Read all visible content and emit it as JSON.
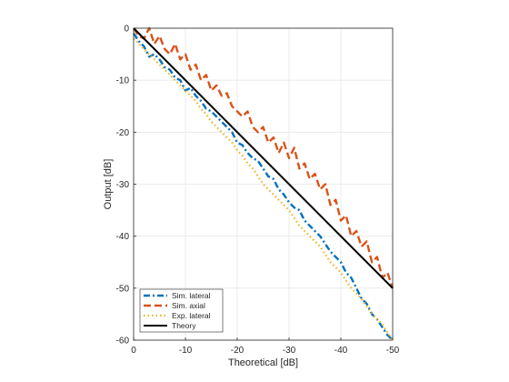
{
  "chart_data": {
    "type": "line",
    "xlabel": "Theoretical [dB]",
    "ylabel": "Output [dB]",
    "xlim": [
      0,
      -50
    ],
    "ylim": [
      -60,
      0
    ],
    "x_reversed": true,
    "grid": true,
    "legend_position": "bottom-left",
    "xticks": [
      0,
      -10,
      -20,
      -30,
      -40,
      -50
    ],
    "yticks": [
      0,
      -10,
      -20,
      -30,
      -40,
      -50,
      -60
    ],
    "xtick_labels": [
      "0",
      "-10",
      "-20",
      "-30",
      "-40",
      "-50"
    ],
    "ytick_labels": [
      "0",
      "-10",
      "-20",
      "-30",
      "-40",
      "-50",
      "-60"
    ],
    "series": [
      {
        "name": "Sim. lateral",
        "color": "#0072BD",
        "style": "dashdot",
        "x": [
          0,
          -1,
          -2,
          -3,
          -4,
          -5,
          -6,
          -7,
          -8,
          -9,
          -10,
          -11,
          -12,
          -13,
          -14,
          -15,
          -16,
          -17,
          -18,
          -19,
          -20,
          -21,
          -22,
          -23,
          -24,
          -25,
          -26,
          -27,
          -28,
          -29,
          -30,
          -31,
          -32,
          -33,
          -34,
          -35,
          -36,
          -37,
          -38,
          -39,
          -40,
          -41,
          -42,
          -43,
          -44,
          -45,
          -46,
          -47,
          -48,
          -49,
          -50
        ],
        "y": [
          -1,
          -2.5,
          -3.5,
          -5.5,
          -5,
          -6,
          -7.5,
          -8,
          -9.5,
          -10,
          -12,
          -11.5,
          -13,
          -14,
          -15.5,
          -16,
          -17,
          -18,
          -19,
          -20,
          -22,
          -22.5,
          -24,
          -25,
          -25.5,
          -27,
          -28.5,
          -29,
          -31,
          -32,
          -33.5,
          -34.5,
          -35,
          -37,
          -38,
          -39,
          -40,
          -41.5,
          -43,
          -44,
          -45,
          -47,
          -48,
          -50,
          -52,
          -53,
          -55,
          -56,
          -57.5,
          -59,
          -60
        ]
      },
      {
        "name": "Sim. axial",
        "color": "#D95319",
        "style": "dashed",
        "x": [
          0,
          -1,
          -2,
          -3,
          -4,
          -5,
          -6,
          -7,
          -8,
          -9,
          -10,
          -11,
          -12,
          -13,
          -14,
          -15,
          -16,
          -17,
          -18,
          -19,
          -20,
          -21,
          -22,
          -23,
          -24,
          -25,
          -26,
          -27,
          -28,
          -29,
          -30,
          -31,
          -32,
          -33,
          -34,
          -35,
          -36,
          -37,
          -38,
          -39,
          -40,
          -41,
          -42,
          -43,
          -44,
          -45,
          -46,
          -47,
          -48,
          -49,
          -50
        ],
        "y": [
          0,
          -1.5,
          -2,
          0,
          -3,
          -1.5,
          -4,
          -5,
          -3,
          -6,
          -5,
          -8,
          -7,
          -10,
          -9,
          -12,
          -11,
          -13,
          -12.5,
          -15,
          -16,
          -17,
          -16,
          -19,
          -20,
          -19,
          -22,
          -21,
          -24,
          -22,
          -25,
          -23,
          -27,
          -26,
          -29,
          -28,
          -31,
          -30,
          -34,
          -33,
          -37,
          -36,
          -40,
          -39,
          -42,
          -41,
          -45,
          -44,
          -48,
          -47,
          -50
        ]
      },
      {
        "name": "Exp. lateral",
        "color": "#EDB120",
        "style": "dotted",
        "x": [
          0,
          -1,
          -2,
          -3,
          -4,
          -5,
          -6,
          -7,
          -8,
          -9,
          -10,
          -11,
          -12,
          -13,
          -14,
          -15,
          -16,
          -17,
          -18,
          -19,
          -20,
          -21,
          -22,
          -23,
          -24,
          -25,
          -26,
          -27,
          -28,
          -29,
          -30,
          -31,
          -32,
          -33,
          -34,
          -35,
          -36,
          -37,
          -38,
          -39,
          -40,
          -41,
          -42,
          -43,
          -44,
          -45,
          -46,
          -47,
          -48,
          -49,
          -50
        ],
        "y": [
          -2,
          -3,
          -4,
          -5,
          -6,
          -7,
          -8,
          -9,
          -10,
          -11,
          -12,
          -13,
          -14,
          -15.5,
          -16.5,
          -18,
          -19,
          -20,
          -21,
          -22,
          -23.5,
          -24.5,
          -26,
          -27,
          -28.5,
          -30,
          -31,
          -32,
          -33,
          -34,
          -35,
          -36.5,
          -38,
          -39,
          -40,
          -41,
          -42,
          -43.5,
          -45,
          -46,
          -47,
          -48.5,
          -50,
          -51,
          -52,
          -53.5,
          -55,
          -56,
          -57,
          -58.5,
          -60
        ]
      },
      {
        "name": "Theory",
        "color": "#000000",
        "style": "solid",
        "x": [
          0,
          -50
        ],
        "y": [
          0,
          -50
        ]
      }
    ]
  }
}
